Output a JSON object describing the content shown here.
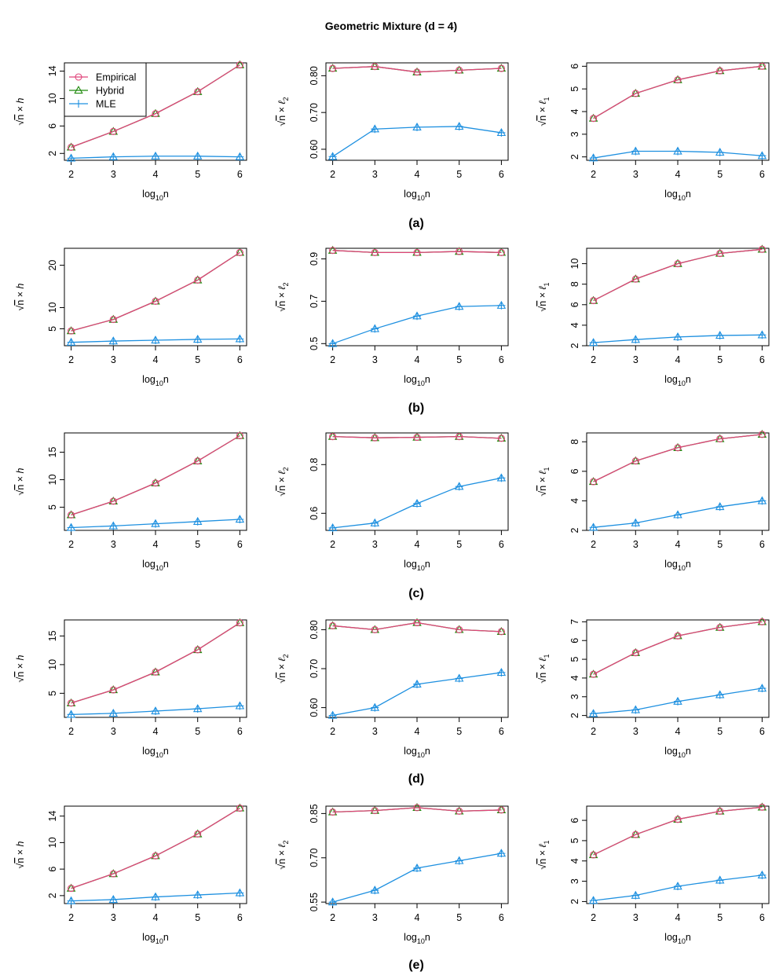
{
  "title": "Geometric Mixture (d = 4)",
  "colors": {
    "empirical": "#e0457b",
    "hybrid": "#1f8a0c",
    "mle": "#1e90e0"
  },
  "legend": {
    "items": [
      {
        "name": "Empirical",
        "marker": "circle",
        "color": "#e0457b"
      },
      {
        "name": "Hybrid",
        "marker": "triangle",
        "color": "#1f8a0c"
      },
      {
        "name": "MLE",
        "marker": "plus",
        "color": "#1e90e0"
      }
    ]
  },
  "x_label": {
    "base": "log",
    "sub": "10",
    "var": "n"
  },
  "y_labels": [
    {
      "sym": "√",
      "rad": "n",
      "times": " × ",
      "metric": "h",
      "sub": ""
    },
    {
      "sym": "√",
      "rad": "n",
      "times": " × ",
      "metric": "ℓ",
      "sub": "2"
    },
    {
      "sym": "√",
      "rad": "n",
      "times": " × ",
      "metric": "ℓ",
      "sub": "1"
    }
  ],
  "row_labels": [
    "(a)",
    "(b)",
    "(c)",
    "(d)",
    "(e)"
  ],
  "chart_data": [
    {
      "row": "(a)",
      "type": "line",
      "title": "",
      "xlabel": "log10n",
      "ylabel": "√n × h",
      "x": [
        2,
        3,
        4,
        5,
        6
      ],
      "ylim": [
        1,
        15.2
      ],
      "yticks": [
        2,
        6,
        10,
        14
      ],
      "series": [
        {
          "name": "Empirical",
          "values": [
            2.9,
            5.2,
            7.8,
            11,
            14.9
          ]
        },
        {
          "name": "Hybrid",
          "values": [
            2.9,
            5.2,
            7.8,
            11,
            14.9
          ]
        },
        {
          "name": "MLE",
          "values": [
            1.3,
            1.5,
            1.6,
            1.6,
            1.5
          ]
        }
      ]
    },
    {
      "row": "(a)",
      "type": "line",
      "title": "",
      "xlabel": "log10n",
      "ylabel": "√n × ℓ2",
      "x": [
        2,
        3,
        4,
        5,
        6
      ],
      "ylim": [
        0.57,
        0.835
      ],
      "yticks": [
        0.6,
        0.7,
        0.8
      ],
      "ytickfmt": 2,
      "series": [
        {
          "name": "Empirical",
          "values": [
            0.82,
            0.825,
            0.81,
            0.815,
            0.82
          ]
        },
        {
          "name": "Hybrid",
          "values": [
            0.82,
            0.825,
            0.81,
            0.815,
            0.82
          ]
        },
        {
          "name": "MLE",
          "values": [
            0.58,
            0.655,
            0.66,
            0.662,
            0.645
          ]
        }
      ]
    },
    {
      "row": "(a)",
      "type": "line",
      "title": "",
      "xlabel": "log10n",
      "ylabel": "√n × ℓ1",
      "x": [
        2,
        3,
        4,
        5,
        6
      ],
      "ylim": [
        1.85,
        6.15
      ],
      "yticks": [
        2,
        3,
        4,
        5,
        6
      ],
      "series": [
        {
          "name": "Empirical",
          "values": [
            3.7,
            4.8,
            5.4,
            5.8,
            6.0
          ]
        },
        {
          "name": "Hybrid",
          "values": [
            3.7,
            4.8,
            5.4,
            5.8,
            6.0
          ]
        },
        {
          "name": "MLE",
          "values": [
            1.95,
            2.25,
            2.25,
            2.2,
            2.05
          ]
        }
      ]
    },
    {
      "row": "(b)",
      "type": "line",
      "title": "",
      "xlabel": "log10n",
      "ylabel": "√n × h",
      "x": [
        2,
        3,
        4,
        5,
        6
      ],
      "ylim": [
        1,
        24
      ],
      "yticks": [
        5,
        10,
        20
      ],
      "series": [
        {
          "name": "Empirical",
          "values": [
            4.5,
            7.2,
            11.5,
            16.5,
            23
          ]
        },
        {
          "name": "Hybrid",
          "values": [
            4.5,
            7.2,
            11.5,
            16.5,
            23
          ]
        },
        {
          "name": "MLE",
          "values": [
            1.8,
            2.1,
            2.3,
            2.5,
            2.6
          ]
        }
      ]
    },
    {
      "row": "(b)",
      "type": "line",
      "title": "",
      "xlabel": "log10n",
      "ylabel": "√n × ℓ2",
      "x": [
        2,
        3,
        4,
        5,
        6
      ],
      "ylim": [
        0.49,
        0.95
      ],
      "yticks": [
        0.5,
        0.7,
        0.9
      ],
      "ytickfmt": 1,
      "series": [
        {
          "name": "Empirical",
          "values": [
            0.94,
            0.93,
            0.93,
            0.935,
            0.93
          ]
        },
        {
          "name": "Hybrid",
          "values": [
            0.94,
            0.93,
            0.93,
            0.935,
            0.93
          ]
        },
        {
          "name": "MLE",
          "values": [
            0.5,
            0.57,
            0.63,
            0.675,
            0.68
          ]
        }
      ]
    },
    {
      "row": "(b)",
      "type": "line",
      "title": "",
      "xlabel": "log10n",
      "ylabel": "√n × ℓ1",
      "x": [
        2,
        3,
        4,
        5,
        6
      ],
      "ylim": [
        2,
        11.5
      ],
      "yticks": [
        2,
        4,
        6,
        8,
        10
      ],
      "series": [
        {
          "name": "Empirical",
          "values": [
            6.4,
            8.5,
            10.0,
            11.0,
            11.4
          ]
        },
        {
          "name": "Hybrid",
          "values": [
            6.4,
            8.5,
            10.0,
            11.0,
            11.4
          ]
        },
        {
          "name": "MLE",
          "values": [
            2.3,
            2.6,
            2.85,
            3.0,
            3.05
          ]
        }
      ]
    },
    {
      "row": "(c)",
      "type": "line",
      "title": "",
      "xlabel": "log10n",
      "ylabel": "√n × h",
      "x": [
        2,
        3,
        4,
        5,
        6
      ],
      "ylim": [
        0.8,
        18.5
      ],
      "yticks": [
        5,
        10,
        15
      ],
      "series": [
        {
          "name": "Empirical",
          "values": [
            3.6,
            6.1,
            9.4,
            13.4,
            18
          ]
        },
        {
          "name": "Hybrid",
          "values": [
            3.6,
            6.1,
            9.4,
            13.4,
            18
          ]
        },
        {
          "name": "MLE",
          "values": [
            1.3,
            1.6,
            2.0,
            2.4,
            2.8
          ]
        }
      ]
    },
    {
      "row": "(c)",
      "type": "line",
      "title": "",
      "xlabel": "log10n",
      "ylabel": "√n × ℓ2",
      "x": [
        2,
        3,
        4,
        5,
        6
      ],
      "ylim": [
        0.53,
        0.93
      ],
      "yticks": [
        0.6,
        0.8
      ],
      "ytickfmt": 1,
      "series": [
        {
          "name": "Empirical",
          "values": [
            0.915,
            0.91,
            0.912,
            0.915,
            0.908
          ]
        },
        {
          "name": "Hybrid",
          "values": [
            0.915,
            0.91,
            0.912,
            0.915,
            0.908
          ]
        },
        {
          "name": "MLE",
          "values": [
            0.54,
            0.56,
            0.64,
            0.71,
            0.745
          ]
        }
      ]
    },
    {
      "row": "(c)",
      "type": "line",
      "title": "",
      "xlabel": "log10n",
      "ylabel": "√n × ℓ1",
      "x": [
        2,
        3,
        4,
        5,
        6
      ],
      "ylim": [
        2,
        8.6
      ],
      "yticks": [
        2,
        4,
        6,
        8
      ],
      "series": [
        {
          "name": "Empirical",
          "values": [
            5.3,
            6.7,
            7.6,
            8.2,
            8.5
          ]
        },
        {
          "name": "Hybrid",
          "values": [
            5.3,
            6.7,
            7.6,
            8.2,
            8.5
          ]
        },
        {
          "name": "MLE",
          "values": [
            2.2,
            2.5,
            3.05,
            3.6,
            4.0
          ]
        }
      ]
    },
    {
      "row": "(d)",
      "type": "line",
      "title": "",
      "xlabel": "log10n",
      "ylabel": "√n × h",
      "x": [
        2,
        3,
        4,
        5,
        6
      ],
      "ylim": [
        0.8,
        17.8
      ],
      "yticks": [
        5,
        10,
        15
      ],
      "series": [
        {
          "name": "Empirical",
          "values": [
            3.3,
            5.6,
            8.7,
            12.6,
            17.3
          ]
        },
        {
          "name": "Hybrid",
          "values": [
            3.3,
            5.6,
            8.7,
            12.6,
            17.3
          ]
        },
        {
          "name": "MLE",
          "values": [
            1.3,
            1.5,
            1.9,
            2.3,
            2.8
          ]
        }
      ]
    },
    {
      "row": "(d)",
      "type": "line",
      "title": "",
      "xlabel": "log10n",
      "ylabel": "√n × ℓ2",
      "x": [
        2,
        3,
        4,
        5,
        6
      ],
      "ylim": [
        0.575,
        0.825
      ],
      "yticks": [
        0.6,
        0.7,
        0.8
      ],
      "ytickfmt": 2,
      "series": [
        {
          "name": "Empirical",
          "values": [
            0.81,
            0.8,
            0.818,
            0.8,
            0.795
          ]
        },
        {
          "name": "Hybrid",
          "values": [
            0.81,
            0.8,
            0.818,
            0.8,
            0.795
          ]
        },
        {
          "name": "MLE",
          "values": [
            0.58,
            0.6,
            0.66,
            0.675,
            0.69
          ]
        }
      ]
    },
    {
      "row": "(d)",
      "type": "line",
      "title": "",
      "xlabel": "log10n",
      "ylabel": "√n × ℓ1",
      "x": [
        2,
        3,
        4,
        5,
        6
      ],
      "ylim": [
        1.9,
        7.1
      ],
      "yticks": [
        2,
        3,
        4,
        5,
        6,
        7
      ],
      "series": [
        {
          "name": "Empirical",
          "values": [
            4.2,
            5.35,
            6.25,
            6.7,
            7.0
          ]
        },
        {
          "name": "Hybrid",
          "values": [
            4.2,
            5.35,
            6.25,
            6.7,
            7.0
          ]
        },
        {
          "name": "MLE",
          "values": [
            2.1,
            2.3,
            2.75,
            3.1,
            3.45
          ]
        }
      ]
    },
    {
      "row": "(e)",
      "type": "line",
      "title": "",
      "xlabel": "log10n",
      "ylabel": "√n × h",
      "x": [
        2,
        3,
        4,
        5,
        6
      ],
      "ylim": [
        0.8,
        15.5
      ],
      "yticks": [
        2,
        6,
        10,
        14
      ],
      "series": [
        {
          "name": "Empirical",
          "values": [
            3.1,
            5.3,
            8.0,
            11.3,
            15.2
          ]
        },
        {
          "name": "Hybrid",
          "values": [
            3.1,
            5.3,
            8.0,
            11.3,
            15.2
          ]
        },
        {
          "name": "MLE",
          "values": [
            1.2,
            1.4,
            1.8,
            2.1,
            2.4
          ]
        }
      ]
    },
    {
      "row": "(e)",
      "type": "line",
      "title": "",
      "xlabel": "log10n",
      "ylabel": "√n × ℓ2",
      "x": [
        2,
        3,
        4,
        5,
        6
      ],
      "ylim": [
        0.545,
        0.875
      ],
      "yticks": [
        0.55,
        0.7,
        0.85
      ],
      "ytickfmt": 2,
      "series": [
        {
          "name": "Empirical",
          "values": [
            0.855,
            0.86,
            0.87,
            0.858,
            0.862
          ]
        },
        {
          "name": "Hybrid",
          "values": [
            0.855,
            0.86,
            0.87,
            0.858,
            0.862
          ]
        },
        {
          "name": "MLE",
          "values": [
            0.55,
            0.59,
            0.665,
            0.69,
            0.715
          ]
        }
      ]
    },
    {
      "row": "(e)",
      "type": "line",
      "title": "",
      "xlabel": "log10n",
      "ylabel": "√n × ℓ1",
      "x": [
        2,
        3,
        4,
        5,
        6
      ],
      "ylim": [
        1.9,
        6.7
      ],
      "yticks": [
        2,
        3,
        4,
        5,
        6
      ],
      "series": [
        {
          "name": "Empirical",
          "values": [
            4.3,
            5.3,
            6.05,
            6.45,
            6.65
          ]
        },
        {
          "name": "Hybrid",
          "values": [
            4.3,
            5.3,
            6.05,
            6.45,
            6.65
          ]
        },
        {
          "name": "MLE",
          "values": [
            2.05,
            2.3,
            2.75,
            3.05,
            3.3
          ]
        }
      ]
    }
  ]
}
